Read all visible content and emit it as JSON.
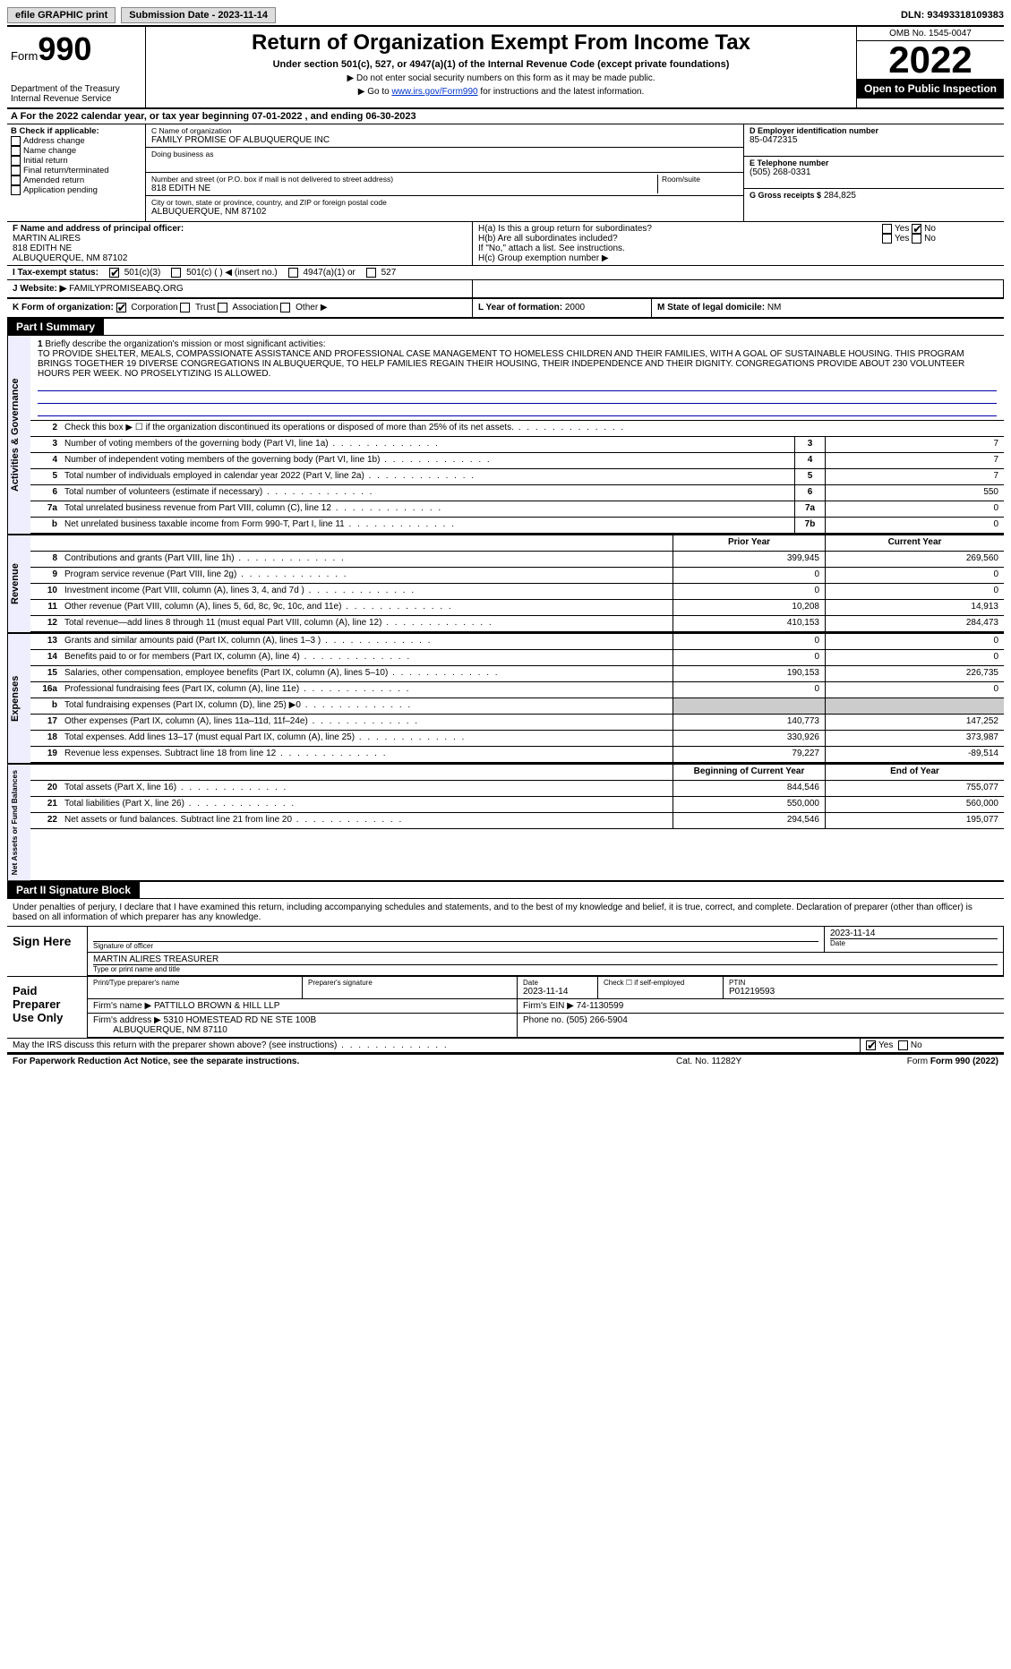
{
  "topbar": {
    "efile": "efile GRAPHIC print",
    "sub_date_label": "Submission Date - 2023-11-14",
    "dln": "DLN: 93493318109383"
  },
  "header": {
    "form_word": "Form",
    "form_num": "990",
    "dept": "Department of the Treasury",
    "irs": "Internal Revenue Service",
    "title": "Return of Organization Exempt From Income Tax",
    "subtitle": "Under section 501(c), 527, or 4947(a)(1) of the Internal Revenue Code (except private foundations)",
    "instr1": "▶ Do not enter social security numbers on this form as it may be made public.",
    "instr2_pre": "▶ Go to ",
    "instr2_link": "www.irs.gov/Form990",
    "instr2_post": " for instructions and the latest information.",
    "omb": "OMB No. 1545-0047",
    "year": "2022",
    "open": "Open to Public Inspection"
  },
  "row_a": "A For the 2022 calendar year, or tax year beginning 07-01-2022   , and ending 06-30-2023",
  "col_b": {
    "label": "B Check if applicable:",
    "opts": [
      "Address change",
      "Name change",
      "Initial return",
      "Final return/terminated",
      "Amended return",
      "Application pending"
    ]
  },
  "col_c": {
    "name_lbl": "C Name of organization",
    "name": "FAMILY PROMISE OF ALBUQUERQUE INC",
    "dba_lbl": "Doing business as",
    "street_lbl": "Number and street (or P.O. box if mail is not delivered to street address)",
    "room_lbl": "Room/suite",
    "street": "818 EDITH NE",
    "city_lbl": "City or town, state or province, country, and ZIP or foreign postal code",
    "city": "ALBUQUERQUE, NM  87102"
  },
  "col_de": {
    "d_lbl": "D Employer identification number",
    "d_val": "85-0472315",
    "e_lbl": "E Telephone number",
    "e_val": "(505) 268-0331",
    "g_lbl": "G Gross receipts $",
    "g_val": "284,825"
  },
  "col_f": {
    "lbl": "F Name and address of principal officer:",
    "name": "MARTIN ALIRES",
    "street": "818 EDITH NE",
    "city": "ALBUQUERQUE, NM  87102"
  },
  "col_h": {
    "ha": "H(a)  Is this a group return for subordinates?",
    "hb": "H(b)  Are all subordinates included?",
    "hb_note": "If \"No,\" attach a list. See instructions.",
    "hc": "H(c)  Group exemption number ▶",
    "yes": "Yes",
    "no": "No"
  },
  "row_i": {
    "lbl": "I   Tax-exempt status:",
    "o1": "501(c)(3)",
    "o2": "501(c) (  ) ◀ (insert no.)",
    "o3": "4947(a)(1) or",
    "o4": "527"
  },
  "row_j": {
    "lbl": "J   Website: ▶",
    "val": "FAMILYPROMISEABQ.ORG"
  },
  "row_k": {
    "lbl": "K Form of organization:",
    "opts": [
      "Corporation",
      "Trust",
      "Association",
      "Other ▶"
    ],
    "l_lbl": "L Year of formation:",
    "l_val": "2000",
    "m_lbl": "M State of legal domicile:",
    "m_val": "NM"
  },
  "part1_label": "Part I      Summary",
  "mission": {
    "num": "1",
    "lbl": "Briefly describe the organization's mission or most significant activities:",
    "text": "TO PROVIDE SHELTER, MEALS, COMPASSIONATE ASSISTANCE AND PROFESSIONAL CASE MANAGEMENT TO HOMELESS CHILDREN AND THEIR FAMILIES, WITH A GOAL OF SUSTAINABLE HOUSING. THIS PROGRAM BRINGS TOGETHER 19 DIVERSE CONGREGATIONS IN ALBUQUERQUE, TO HELP FAMILIES REGAIN THEIR HOUSING, THEIR INDEPENDENCE AND THEIR DIGNITY. CONGREGATIONS PROVIDE ABOUT 230 VOLUNTEER HOURS PER WEEK. NO PROSELYTIZING IS ALLOWED."
  },
  "sections": {
    "ag": "Activities & Governance",
    "rev": "Revenue",
    "exp": "Expenses",
    "net": "Net Assets or Fund Balances"
  },
  "lines_ag": [
    {
      "n": "2",
      "t": "Check this box ▶ ☐  if the organization discontinued its operations or disposed of more than 25% of its net assets."
    },
    {
      "n": "3",
      "t": "Number of voting members of the governing body (Part VI, line 1a)",
      "b": "3",
      "v": "7"
    },
    {
      "n": "4",
      "t": "Number of independent voting members of the governing body (Part VI, line 1b)",
      "b": "4",
      "v": "7"
    },
    {
      "n": "5",
      "t": "Total number of individuals employed in calendar year 2022 (Part V, line 2a)",
      "b": "5",
      "v": "7"
    },
    {
      "n": "6",
      "t": "Total number of volunteers (estimate if necessary)",
      "b": "6",
      "v": "550"
    },
    {
      "n": "7a",
      "t": "Total unrelated business revenue from Part VIII, column (C), line 12",
      "b": "7a",
      "v": "0"
    },
    {
      "n": "b",
      "t": "Net unrelated business taxable income from Form 990-T, Part I, line 11",
      "b": "7b",
      "v": "0"
    }
  ],
  "col_hdr": {
    "prior": "Prior Year",
    "current": "Current Year",
    "boy": "Beginning of Current Year",
    "eoy": "End of Year"
  },
  "lines_rev": [
    {
      "n": "8",
      "t": "Contributions and grants (Part VIII, line 1h)",
      "p": "399,945",
      "c": "269,560"
    },
    {
      "n": "9",
      "t": "Program service revenue (Part VIII, line 2g)",
      "p": "0",
      "c": "0"
    },
    {
      "n": "10",
      "t": "Investment income (Part VIII, column (A), lines 3, 4, and 7d )",
      "p": "0",
      "c": "0"
    },
    {
      "n": "11",
      "t": "Other revenue (Part VIII, column (A), lines 5, 6d, 8c, 9c, 10c, and 11e)",
      "p": "10,208",
      "c": "14,913"
    },
    {
      "n": "12",
      "t": "Total revenue—add lines 8 through 11 (must equal Part VIII, column (A), line 12)",
      "p": "410,153",
      "c": "284,473"
    }
  ],
  "lines_exp": [
    {
      "n": "13",
      "t": "Grants and similar amounts paid (Part IX, column (A), lines 1–3 )",
      "p": "0",
      "c": "0"
    },
    {
      "n": "14",
      "t": "Benefits paid to or for members (Part IX, column (A), line 4)",
      "p": "0",
      "c": "0"
    },
    {
      "n": "15",
      "t": "Salaries, other compensation, employee benefits (Part IX, column (A), lines 5–10)",
      "p": "190,153",
      "c": "226,735"
    },
    {
      "n": "16a",
      "t": "Professional fundraising fees (Part IX, column (A), line 11e)",
      "p": "0",
      "c": "0"
    },
    {
      "n": "b",
      "t": "Total fundraising expenses (Part IX, column (D), line 25) ▶0",
      "p": "",
      "c": "",
      "shade": true
    },
    {
      "n": "17",
      "t": "Other expenses (Part IX, column (A), lines 11a–11d, 11f–24e)",
      "p": "140,773",
      "c": "147,252"
    },
    {
      "n": "18",
      "t": "Total expenses. Add lines 13–17 (must equal Part IX, column (A), line 25)",
      "p": "330,926",
      "c": "373,987"
    },
    {
      "n": "19",
      "t": "Revenue less expenses. Subtract line 18 from line 12",
      "p": "79,227",
      "c": "-89,514"
    }
  ],
  "lines_net": [
    {
      "n": "20",
      "t": "Total assets (Part X, line 16)",
      "p": "844,546",
      "c": "755,077"
    },
    {
      "n": "21",
      "t": "Total liabilities (Part X, line 26)",
      "p": "550,000",
      "c": "560,000"
    },
    {
      "n": "22",
      "t": "Net assets or fund balances. Subtract line 21 from line 20",
      "p": "294,546",
      "c": "195,077"
    }
  ],
  "part2_label": "Part II     Signature Block",
  "sig": {
    "perjury": "Under penalties of perjury, I declare that I have examined this return, including accompanying schedules and statements, and to the best of my knowledge and belief, it is true, correct, and complete. Declaration of preparer (other than officer) is based on all information of which preparer has any knowledge.",
    "sign_here": "Sign Here",
    "sig_officer": "Signature of officer",
    "date_lbl": "Date",
    "sig_date": "2023-11-14",
    "name_title": "MARTIN ALIRES  TREASURER",
    "type_name": "Type or print name and title",
    "paid": "Paid Preparer Use Only",
    "prep_name_lbl": "Print/Type preparer's name",
    "prep_sig_lbl": "Preparer's signature",
    "prep_date": "2023-11-14",
    "check_self": "Check ☐ if self-employed",
    "ptin_lbl": "PTIN",
    "ptin": "P01219593",
    "firm_name_lbl": "Firm's name   ▶",
    "firm_name": "PATTILLO BROWN & HILL LLP",
    "firm_ein_lbl": "Firm's EIN ▶",
    "firm_ein": "74-1130599",
    "firm_addr_lbl": "Firm's address ▶",
    "firm_addr1": "5310 HOMESTEAD RD NE STE 100B",
    "firm_addr2": "ALBUQUERQUE, NM  87110",
    "phone_lbl": "Phone no.",
    "phone": "(505) 266-5904",
    "discuss": "May the IRS discuss this return with the preparer shown above? (see instructions)",
    "yes": "Yes",
    "no": "No"
  },
  "footer": {
    "pra": "For Paperwork Reduction Act Notice, see the separate instructions.",
    "cat": "Cat. No. 11282Y",
    "form": "Form 990 (2022)"
  }
}
